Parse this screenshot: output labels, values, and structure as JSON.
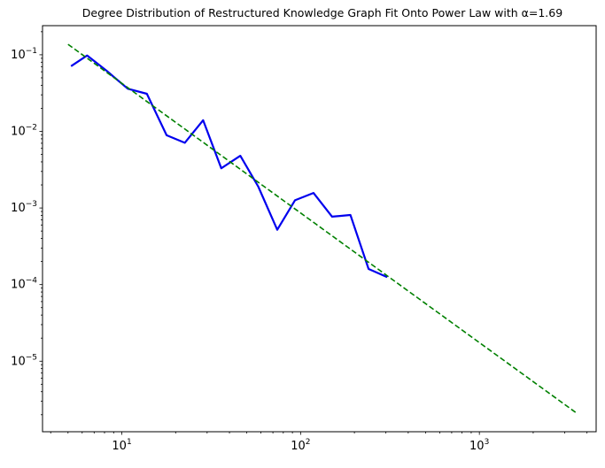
{
  "chart_data": {
    "type": "line",
    "title": "Degree Distribution of Restructured Knowledge Graph Fit Onto Power Law with α=1.69",
    "xlabel": "",
    "ylabel": "",
    "xscale": "log",
    "yscale": "log",
    "xlim": [
      3.6,
      4500
    ],
    "ylim": [
      1.2e-06,
      0.24
    ],
    "grid": false,
    "x_ticks": [
      {
        "value": 10,
        "base": "10",
        "exp": "1"
      },
      {
        "value": 100,
        "base": "10",
        "exp": "2"
      },
      {
        "value": 1000,
        "base": "10",
        "exp": "3"
      }
    ],
    "y_ticks": [
      {
        "value": 1e-05,
        "base": "10",
        "exp": "−5"
      },
      {
        "value": 0.0001,
        "base": "10",
        "exp": "−4"
      },
      {
        "value": 0.001,
        "base": "10",
        "exp": "−3"
      },
      {
        "value": 0.01,
        "base": "10",
        "exp": "−2"
      },
      {
        "value": 0.1,
        "base": "10",
        "exp": "−1"
      }
    ],
    "series": [
      {
        "style": "solid",
        "color": "#0000ee",
        "x": [
          5.2,
          6.4,
          8.2,
          10.8,
          13.8,
          17.8,
          22.5,
          28.5,
          36,
          46,
          58,
          74,
          93,
          118,
          150,
          190,
          240,
          305
        ],
        "y": [
          0.071,
          0.098,
          0.062,
          0.036,
          0.031,
          0.0089,
          0.0071,
          0.014,
          0.0033,
          0.0048,
          0.0019,
          0.00052,
          0.00126,
          0.00157,
          0.00077,
          0.00081,
          0.00016,
          0.000125
        ]
      },
      {
        "style": "dashed",
        "color": "#008000",
        "x": [
          5,
          3500
        ],
        "y": [
          0.137,
          2.1e-06
        ]
      }
    ]
  }
}
